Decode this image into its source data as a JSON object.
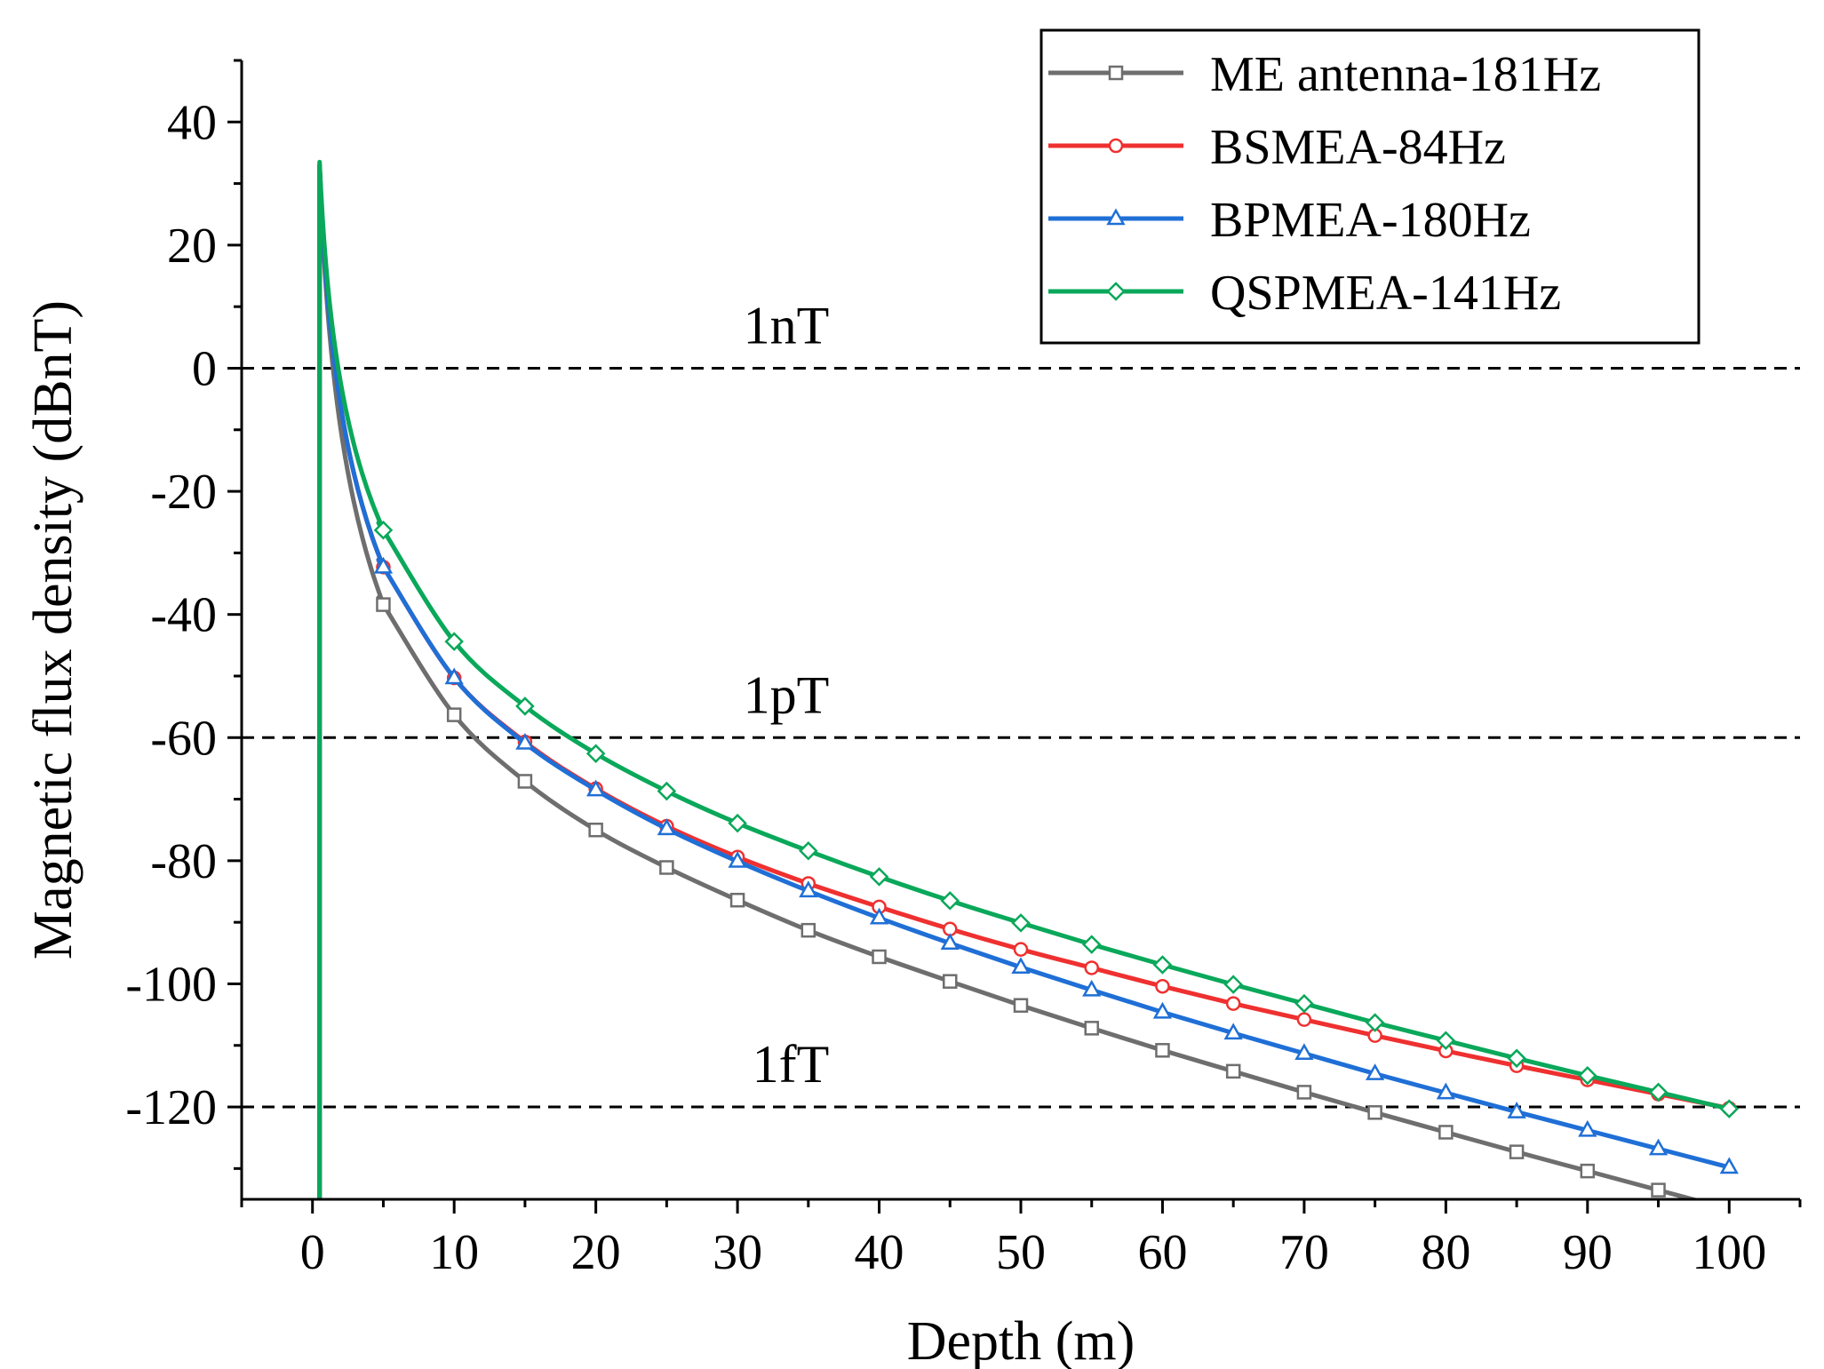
{
  "chart_data": {
    "type": "line",
    "title": "",
    "xlabel": "Depth (m)",
    "ylabel": "Magnetic flux density (dBnT)",
    "xlim": [
      -5,
      105
    ],
    "ylim": [
      -135,
      50
    ],
    "xticks": [
      0,
      10,
      20,
      30,
      40,
      50,
      60,
      70,
      80,
      90,
      100
    ],
    "yticks": [
      40,
      20,
      0,
      -20,
      -40,
      -60,
      -80,
      -100,
      -120
    ],
    "grid": false,
    "legend_position": "top-right",
    "reference_lines": [
      {
        "label": "1nT",
        "y": 0
      },
      {
        "label": "1pT",
        "y": -60
      },
      {
        "label": "1fT",
        "y": -120
      }
    ],
    "x": [
      5,
      10,
      15,
      20,
      25,
      30,
      35,
      40,
      45,
      50,
      55,
      60,
      65,
      70,
      75,
      80,
      85,
      90,
      95,
      100
    ],
    "series": [
      {
        "name": "ME antenna-181Hz",
        "color": "#6e6e6e",
        "marker": "square",
        "peak": [
          0.5,
          33
        ],
        "values": [
          -38.4,
          -56.3,
          -67.1,
          -75,
          -81.1,
          -86.4,
          -91.3,
          -95.6,
          -99.6,
          -103.5,
          -107.2,
          -110.8,
          -114.2,
          -117.6,
          -120.9,
          -124.1,
          -127.3,
          -130.4,
          -133.5,
          null
        ]
      },
      {
        "name": "BSMEA-84Hz",
        "color": "#ef3030",
        "marker": "circle",
        "peak": [
          0.5,
          33
        ],
        "values": [
          -32.3,
          -50.3,
          -60.7,
          -68.3,
          -74.4,
          -79.4,
          -83.7,
          -87.5,
          -91.1,
          -94.4,
          -97.4,
          -100.4,
          -103.2,
          -105.8,
          -108.4,
          -110.9,
          -113.3,
          -115.6,
          -117.9,
          -120.2
        ]
      },
      {
        "name": "BPMEA-180Hz",
        "color": "#1f6fd6",
        "marker": "triangle",
        "peak": [
          0.5,
          33
        ],
        "values": [
          -32.3,
          -50.3,
          -60.9,
          -68.5,
          -74.8,
          -80.1,
          -84.9,
          -89.3,
          -93.4,
          -97.3,
          -101,
          -104.6,
          -108,
          -111.3,
          -114.6,
          -117.7,
          -120.8,
          -123.8,
          -126.8,
          -129.8
        ]
      },
      {
        "name": "QSPMEA-141Hz",
        "color": "#0aa85a",
        "marker": "diamond",
        "peak": [
          0.5,
          33.5
        ],
        "values": [
          -26.3,
          -44.4,
          -54.9,
          -62.6,
          -68.7,
          -73.9,
          -78.4,
          -82.6,
          -86.5,
          -90.1,
          -93.6,
          -96.9,
          -100.1,
          -103.2,
          -106.3,
          -109.2,
          -112.1,
          -114.9,
          -117.6,
          -120.3
        ]
      }
    ]
  }
}
